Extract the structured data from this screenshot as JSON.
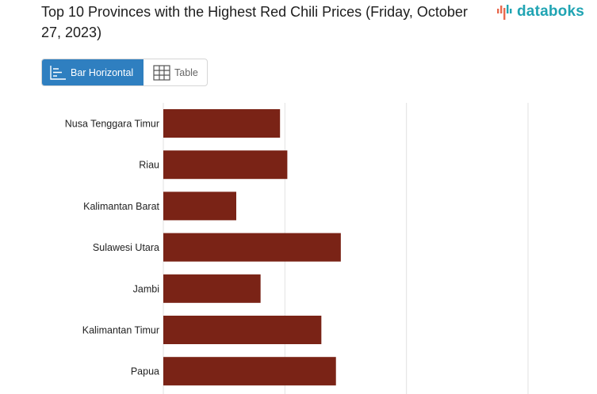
{
  "header": {
    "title": "Top 10 Provinces with the Highest Red Chili Prices (Friday, October 27, 2023)",
    "logo_text": "databoks"
  },
  "toggle": {
    "bar_label": "Bar Horizontal",
    "table_label": "Table"
  },
  "colors": {
    "bar": "#7a2316",
    "accent": "#2f7fc0",
    "logo": "#20a4b3",
    "logo_mark": "#e86a4f"
  },
  "chart_data": {
    "type": "bar",
    "orientation": "horizontal",
    "categories": [
      "Nusa Tenggara Timur",
      "Riau",
      "Kalimantan Barat",
      "Sulawesi Utara",
      "Jambi",
      "Kalimantan Timur",
      "Papua"
    ],
    "values": [
      96000,
      102000,
      60000,
      146000,
      80000,
      130000,
      142000
    ],
    "xlim": [
      0,
      300000
    ],
    "grid": true
  }
}
